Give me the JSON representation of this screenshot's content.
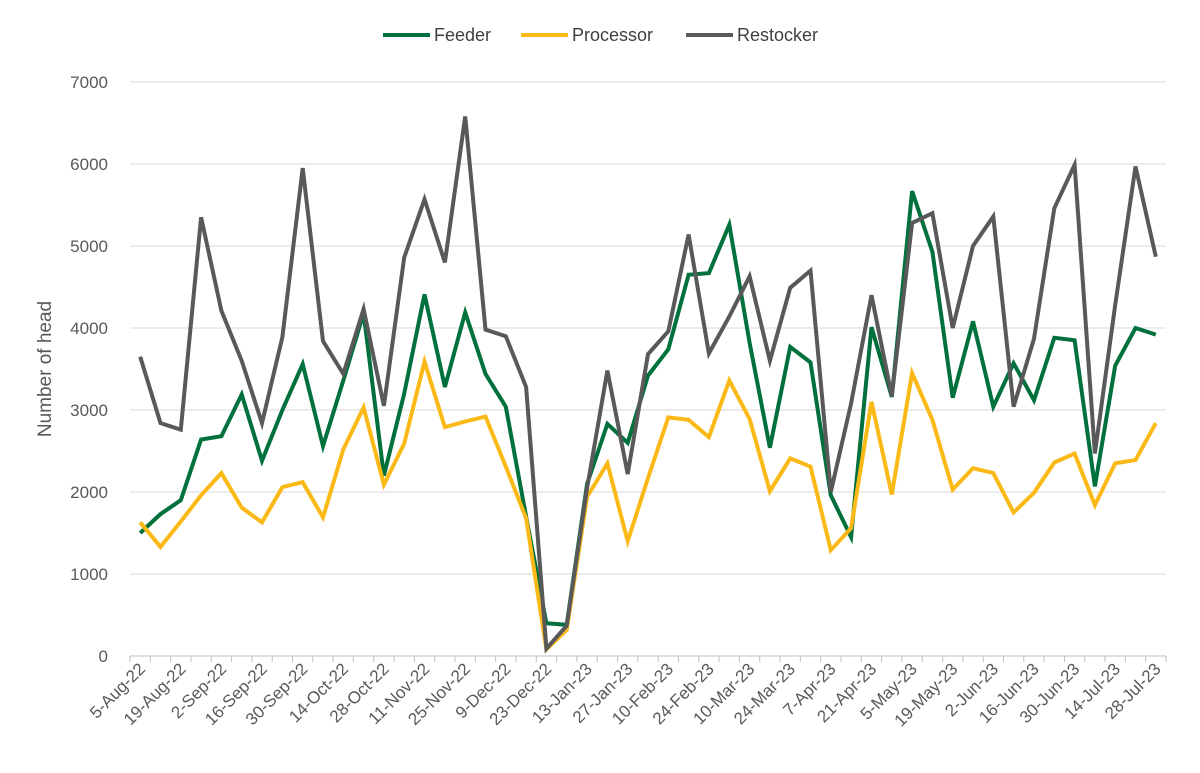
{
  "chart_data": {
    "type": "line",
    "title": "",
    "xlabel": "",
    "ylabel": "Number of head",
    "ylim": [
      0,
      7000
    ],
    "ytick_step": 1000,
    "grid": "horizontal",
    "legend_position": "top",
    "categories": [
      "5-Aug-22",
      "12-Aug-22",
      "19-Aug-22",
      "26-Aug-22",
      "2-Sep-22",
      "9-Sep-22",
      "16-Sep-22",
      "23-Sep-22",
      "30-Sep-22",
      "7-Oct-22",
      "14-Oct-22",
      "21-Oct-22",
      "28-Oct-22",
      "4-Nov-22",
      "11-Nov-22",
      "18-Nov-22",
      "25-Nov-22",
      "2-Dec-22",
      "9-Dec-22",
      "16-Dec-22",
      "23-Dec-22",
      "6-Jan-23",
      "13-Jan-23",
      "20-Jan-23",
      "27-Jan-23",
      "3-Feb-23",
      "10-Feb-23",
      "17-Feb-23",
      "24-Feb-23",
      "3-Mar-23",
      "10-Mar-23",
      "17-Mar-23",
      "24-Mar-23",
      "31-Mar-23",
      "7-Apr-23",
      "14-Apr-23",
      "21-Apr-23",
      "28-Apr-23",
      "5-May-23",
      "12-May-23",
      "19-May-23",
      "26-May-23",
      "2-Jun-23",
      "9-Jun-23",
      "16-Jun-23",
      "23-Jun-23",
      "30-Jun-23",
      "7-Jul-23",
      "14-Jul-23",
      "21-Jul-23",
      "28-Jul-23"
    ],
    "tick_labels": [
      "5-Aug-22",
      "19-Aug-22",
      "2-Sep-22",
      "16-Sep-22",
      "30-Sep-22",
      "14-Oct-22",
      "28-Oct-22",
      "11-Nov-22",
      "25-Nov-22",
      "9-Dec-22",
      "23-Dec-22",
      "13-Jan-23",
      "27-Jan-23",
      "10-Feb-23",
      "24-Feb-23",
      "10-Mar-23",
      "24-Mar-23",
      "7-Apr-23",
      "21-Apr-23",
      "5-May-23",
      "19-May-23",
      "2-Jun-23",
      "16-Jun-23",
      "30-Jun-23",
      "14-Jul-23",
      "28-Jul-23"
    ],
    "series": [
      {
        "name": "Feeder",
        "color": "#00703C",
        "values": [
          1500,
          1730,
          1900,
          2640,
          2680,
          3190,
          2380,
          3000,
          3560,
          2560,
          3360,
          4180,
          2200,
          3200,
          4410,
          3280,
          4190,
          3440,
          3040,
          1700,
          400,
          380,
          2100,
          2830,
          2600,
          3420,
          3740,
          4650,
          4670,
          5260,
          3820,
          2540,
          3770,
          3580,
          1960,
          1450,
          4010,
          3160,
          5670,
          4930,
          3150,
          4080,
          3040,
          3570,
          3120,
          3880,
          3850,
          2070,
          3540,
          4000,
          3920
        ]
      },
      {
        "name": "Processor",
        "color": "#FBB917",
        "values": [
          1630,
          1330,
          1640,
          1960,
          2230,
          1810,
          1630,
          2060,
          2120,
          1690,
          2520,
          3030,
          2090,
          2590,
          3590,
          2790,
          2860,
          2920,
          2310,
          1680,
          80,
          320,
          1940,
          2350,
          1400,
          2170,
          2910,
          2880,
          2670,
          3360,
          2890,
          2010,
          2410,
          2310,
          1290,
          1560,
          3100,
          1970,
          3450,
          2880,
          2030,
          2290,
          2230,
          1750,
          1990,
          2360,
          2470,
          1840,
          2350,
          2390,
          2840
        ]
      },
      {
        "name": "Restocker",
        "color": "#595959",
        "values": [
          3650,
          2840,
          2760,
          5350,
          4210,
          3600,
          2840,
          3890,
          5950,
          3840,
          3440,
          4230,
          3050,
          4860,
          5570,
          4800,
          6580,
          3980,
          3900,
          3280,
          90,
          370,
          2050,
          3480,
          2220,
          3680,
          3960,
          5140,
          3690,
          4140,
          4630,
          3600,
          4490,
          4700,
          2000,
          3080,
          4400,
          3170,
          5280,
          5400,
          4000,
          5000,
          5360,
          3040,
          3870,
          5460,
          5990,
          2470,
          4280,
          5970,
          4870
        ]
      }
    ]
  }
}
